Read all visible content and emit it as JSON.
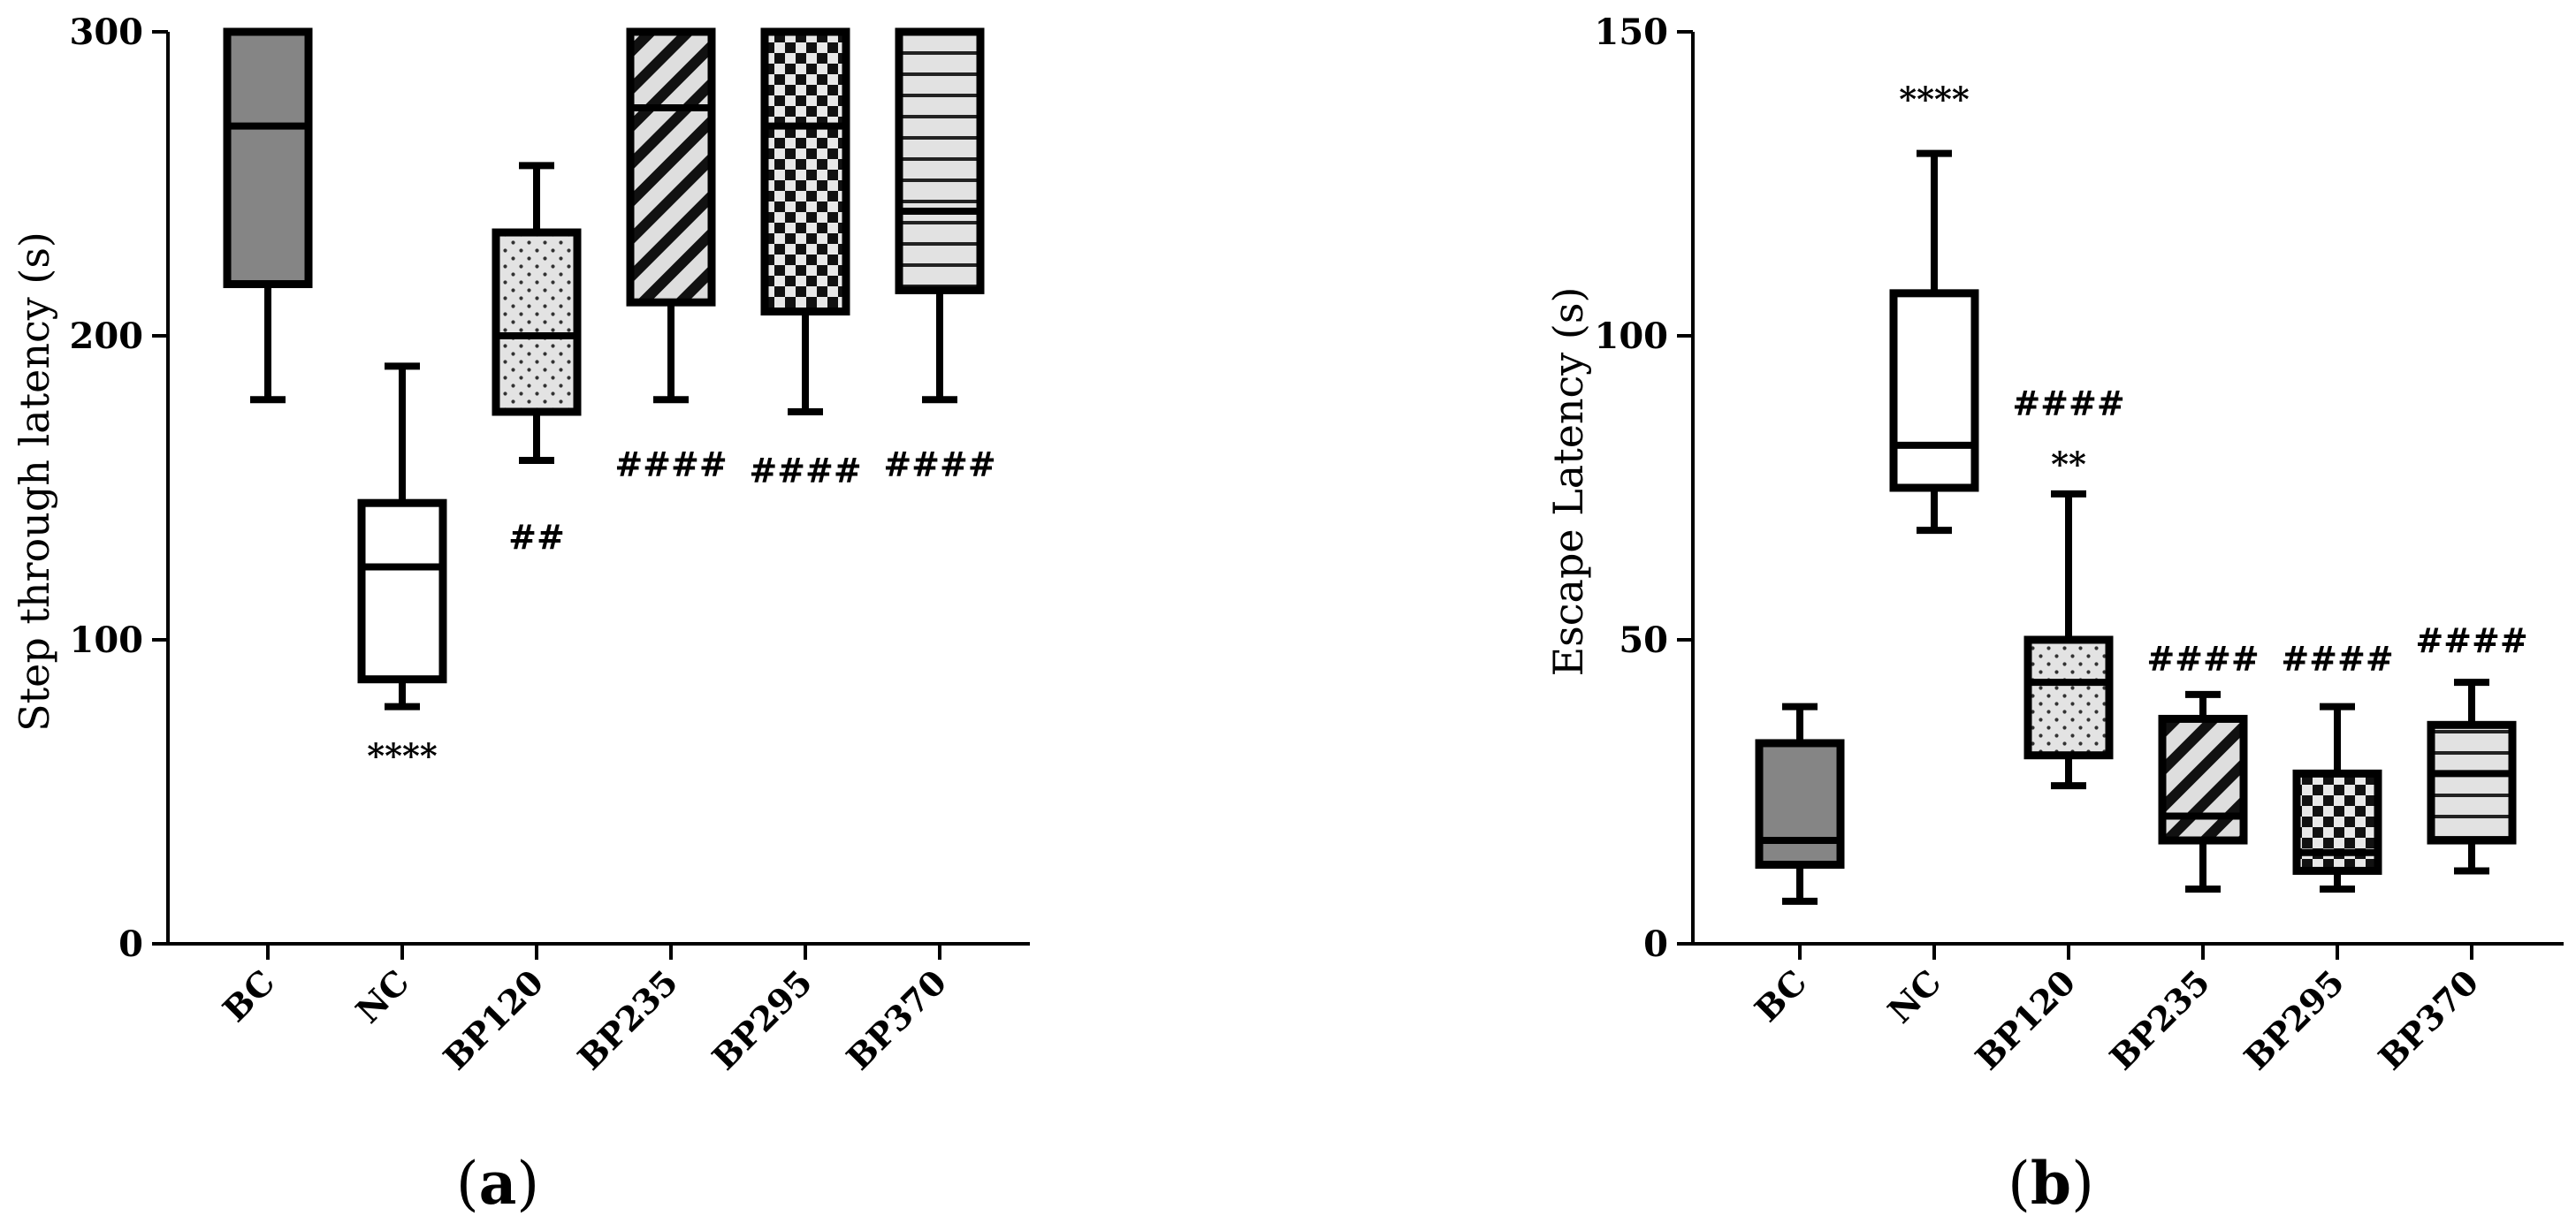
{
  "chart_data": [
    {
      "type": "box",
      "panel": "a",
      "ylabel": "Step through latency (s)",
      "ylim": [
        0,
        300
      ],
      "yticks": [
        0,
        100,
        200,
        300
      ],
      "categories": [
        "BC",
        "NC",
        "BP120",
        "BP235",
        "BP295",
        "BP370"
      ],
      "boxes": [
        {
          "min": 179,
          "q1": 217,
          "median": 269,
          "q3": 300,
          "max": 300,
          "pattern": "solid-gray"
        },
        {
          "min": 78,
          "q1": 87,
          "median": 124,
          "q3": 145,
          "max": 190,
          "pattern": "white"
        },
        {
          "min": 159,
          "q1": 175,
          "median": 200,
          "q3": 234,
          "max": 256,
          "pattern": "dots"
        },
        {
          "min": 179,
          "q1": 211,
          "median": 275,
          "q3": 300,
          "max": 300,
          "pattern": "diagonal"
        },
        {
          "min": 175,
          "q1": 208,
          "median": 269,
          "q3": 300,
          "max": 300,
          "pattern": "checker"
        },
        {
          "min": 179,
          "q1": 215,
          "median": 241,
          "q3": 300,
          "max": 300,
          "pattern": "horizontal"
        }
      ],
      "annotations": [
        {
          "category": "NC",
          "text": "****",
          "y": 62
        },
        {
          "category": "BP120",
          "text": "##",
          "y": 134
        },
        {
          "category": "BP235",
          "text": "####",
          "y": 158
        },
        {
          "category": "BP295",
          "text": "####",
          "y": 156
        },
        {
          "category": "BP370",
          "text": "####",
          "y": 158
        }
      ]
    },
    {
      "type": "box",
      "panel": "b",
      "ylabel": "Escape Latency (s)",
      "ylim": [
        0,
        150
      ],
      "yticks": [
        0,
        50,
        100,
        150
      ],
      "categories": [
        "BC",
        "NC",
        "BP120",
        "BP235",
        "BP295",
        "BP370"
      ],
      "boxes": [
        {
          "min": 7,
          "q1": 13,
          "median": 17,
          "q3": 33,
          "max": 39,
          "pattern": "solid-gray"
        },
        {
          "min": 68,
          "q1": 75,
          "median": 82,
          "q3": 107,
          "max": 130,
          "pattern": "white"
        },
        {
          "min": 26,
          "q1": 31,
          "median": 43,
          "q3": 50,
          "max": 74,
          "pattern": "dots"
        },
        {
          "min": 9,
          "q1": 17,
          "median": 21,
          "q3": 37,
          "max": 41,
          "pattern": "diagonal"
        },
        {
          "min": 9,
          "q1": 12,
          "median": 15,
          "q3": 28,
          "max": 39,
          "pattern": "checker"
        },
        {
          "min": 12,
          "q1": 17,
          "median": 28,
          "q3": 36,
          "max": 43,
          "pattern": "horizontal"
        }
      ],
      "annotations": [
        {
          "category": "NC",
          "text": "****",
          "y": 139
        },
        {
          "category": "BP120",
          "text": "####",
          "y": 89
        },
        {
          "category": "BP120",
          "text": "**",
          "y": 79
        },
        {
          "category": "BP235",
          "text": "####",
          "y": 47
        },
        {
          "category": "BP295",
          "text": "####",
          "y": 47
        },
        {
          "category": "BP370",
          "text": "####",
          "y": 50
        }
      ]
    }
  ],
  "panel_labels": [
    {
      "open": "(",
      "letter": "a",
      "close": ")"
    },
    {
      "open": "(",
      "letter": "b",
      "close": ")"
    }
  ]
}
